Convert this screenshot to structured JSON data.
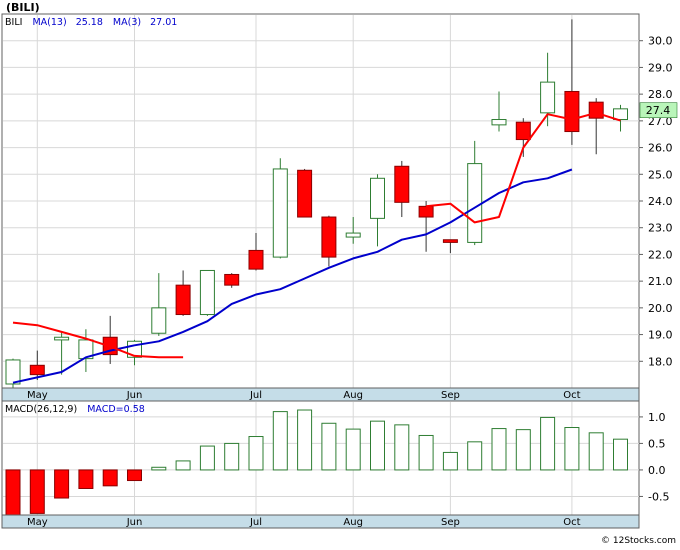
{
  "title": "(BILI)",
  "legend": {
    "symbol": "BILI",
    "ma13_label": "MA(13)",
    "ma13_value": "25.18",
    "ma3_label": "MA(3)",
    "ma3_value": "27.01"
  },
  "macd_legend": {
    "label": "MACD(26,12,9)",
    "macd_label": "MACD=0.58"
  },
  "last_price_label": "27.4",
  "footer": "© 12Stocks.com",
  "colors": {
    "up": "#2e7d32",
    "down": "#ff0000",
    "ma13": "#0000cc",
    "ma3": "#ff0000",
    "axis_band": "#c5dde8",
    "grid": "#d8d8d8",
    "last_price_bg": "#b9f5b9"
  },
  "chart_data": [
    {
      "type": "candlestick",
      "period": "weekly",
      "ylim": [
        17,
        31
      ],
      "y_ticks": [
        "18.0",
        "19.0",
        "20.0",
        "21.0",
        "22.0",
        "23.0",
        "24.0",
        "25.0",
        "26.0",
        "27.0",
        "28.0",
        "29.0",
        "30.0"
      ],
      "month_labels": [
        {
          "label": "May",
          "index": 1
        },
        {
          "label": "Jun",
          "index": 5
        },
        {
          "label": "Jul",
          "index": 10
        },
        {
          "label": "Aug",
          "index": 14
        },
        {
          "label": "Sep",
          "index": 18
        },
        {
          "label": "Oct",
          "index": 23
        }
      ],
      "candles": [
        {
          "o": 17.15,
          "h": 18.1,
          "l": 17.0,
          "c": 18.05
        },
        {
          "o": 17.85,
          "h": 18.4,
          "l": 17.3,
          "c": 17.5
        },
        {
          "o": 18.8,
          "h": 19.1,
          "l": 17.5,
          "c": 18.9
        },
        {
          "o": 18.1,
          "h": 19.2,
          "l": 17.6,
          "c": 18.8
        },
        {
          "o": 18.9,
          "h": 19.7,
          "l": 17.9,
          "c": 18.25
        },
        {
          "o": 18.15,
          "h": 18.8,
          "l": 17.85,
          "c": 18.75
        },
        {
          "o": 19.05,
          "h": 21.3,
          "l": 18.95,
          "c": 20.0
        },
        {
          "o": 20.85,
          "h": 21.4,
          "l": 19.7,
          "c": 19.75
        },
        {
          "o": 19.75,
          "h": 21.4,
          "l": 19.7,
          "c": 21.4
        },
        {
          "o": 21.25,
          "h": 21.3,
          "l": 20.75,
          "c": 20.85
        },
        {
          "o": 22.15,
          "h": 22.8,
          "l": 21.4,
          "c": 21.45
        },
        {
          "o": 21.9,
          "h": 25.6,
          "l": 21.85,
          "c": 25.2
        },
        {
          "o": 25.15,
          "h": 25.2,
          "l": 23.4,
          "c": 23.4
        },
        {
          "o": 23.4,
          "h": 23.45,
          "l": 21.55,
          "c": 21.9
        },
        {
          "o": 22.65,
          "h": 23.4,
          "l": 22.4,
          "c": 22.8
        },
        {
          "o": 23.35,
          "h": 25.0,
          "l": 22.3,
          "c": 24.85
        },
        {
          "o": 25.3,
          "h": 25.5,
          "l": 23.4,
          "c": 23.95
        },
        {
          "o": 23.8,
          "h": 24.0,
          "l": 22.1,
          "c": 23.4
        },
        {
          "o": 22.55,
          "h": 22.55,
          "l": 22.05,
          "c": 22.45
        },
        {
          "o": 22.45,
          "h": 26.25,
          "l": 22.35,
          "c": 25.4
        },
        {
          "o": 26.85,
          "h": 28.1,
          "l": 26.6,
          "c": 27.05
        },
        {
          "o": 26.95,
          "h": 27.1,
          "l": 25.65,
          "c": 26.3
        },
        {
          "o": 27.3,
          "h": 29.55,
          "l": 26.8,
          "c": 28.45
        },
        {
          "o": 28.1,
          "h": 30.8,
          "l": 26.1,
          "c": 26.6
        },
        {
          "o": 27.7,
          "h": 27.85,
          "l": 25.75,
          "c": 27.1
        },
        {
          "o": 27.05,
          "h": 27.6,
          "l": 26.6,
          "c": 27.45
        }
      ],
      "ma13": [
        17.2,
        17.6,
        18.15,
        18.4,
        18.6,
        18.75,
        19.1,
        19.5,
        20.15,
        20.5,
        20.7,
        21.1,
        21.5,
        21.85,
        22.1,
        22.55,
        22.75,
        23.2,
        23.75,
        24.3,
        24.7,
        24.85,
        25.18
      ],
      "ma13_start_index": 3,
      "ma3": [
        19.45,
        19.35,
        19.1,
        18.85,
        18.55,
        18.2,
        18.15,
        18.15
      ],
      "ma3_tail": [
        23.8,
        23.9,
        23.2,
        23.4,
        26.0,
        27.25,
        27.05,
        27.3,
        27.01
      ],
      "last_price": 27.4
    },
    {
      "type": "bar",
      "name": "MACD",
      "ylim": [
        -0.85,
        1.3
      ],
      "y_ticks": [
        "1.0",
        "0.5",
        "0.0",
        "-0.5"
      ],
      "values": [
        -0.85,
        -0.82,
        -0.53,
        -0.35,
        -0.3,
        -0.2,
        0.05,
        0.17,
        0.45,
        0.5,
        0.63,
        1.1,
        1.13,
        0.88,
        0.77,
        0.92,
        0.85,
        0.65,
        0.33,
        0.53,
        0.78,
        0.76,
        0.99,
        0.8,
        0.7,
        0.58
      ]
    }
  ]
}
